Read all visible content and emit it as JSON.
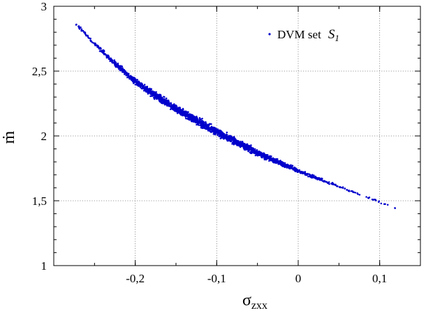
{
  "chart_data": {
    "type": "scatter",
    "xlabel": "σ",
    "xlabel_subscript": "zxx",
    "ylabel": "ṁ",
    "xlim": [
      -0.3,
      0.15
    ],
    "ylim": [
      1,
      3
    ],
    "xticks": [
      -0.2,
      -0.1,
      0,
      0.1
    ],
    "xtick_labels": [
      "-0,2",
      "-0,1",
      "0",
      "0,1"
    ],
    "yticks": [
      1,
      1.5,
      2,
      2.5,
      3
    ],
    "ytick_labels": [
      "1",
      "1,5",
      "2",
      "2,5",
      "3"
    ],
    "grid": true,
    "legend_position": "top-right",
    "series": [
      {
        "name": "DVM set",
        "name_symbol": "S",
        "name_symbol_sub": "1",
        "color": "#0000cc",
        "marker": "dot",
        "trend_x": [
          -0.275,
          -0.25,
          -0.225,
          -0.2,
          -0.175,
          -0.15,
          -0.125,
          -0.1,
          -0.075,
          -0.05,
          -0.025,
          0.0,
          0.025,
          0.05,
          0.075,
          0.1,
          0.12
        ],
        "trend_y": [
          2.88,
          2.71,
          2.56,
          2.42,
          2.31,
          2.21,
          2.12,
          2.03,
          1.95,
          1.87,
          1.8,
          1.73,
          1.67,
          1.61,
          1.55,
          1.49,
          1.44
        ],
        "spread_y": [
          0.01,
          0.015,
          0.02,
          0.025,
          0.028,
          0.03,
          0.03,
          0.03,
          0.028,
          0.025,
          0.02,
          0.015,
          0.012,
          0.01,
          0.008,
          0.006,
          0.005
        ],
        "density": [
          40,
          90,
          160,
          220,
          260,
          280,
          280,
          270,
          240,
          200,
          150,
          90,
          45,
          25,
          12,
          6,
          3
        ]
      }
    ]
  }
}
